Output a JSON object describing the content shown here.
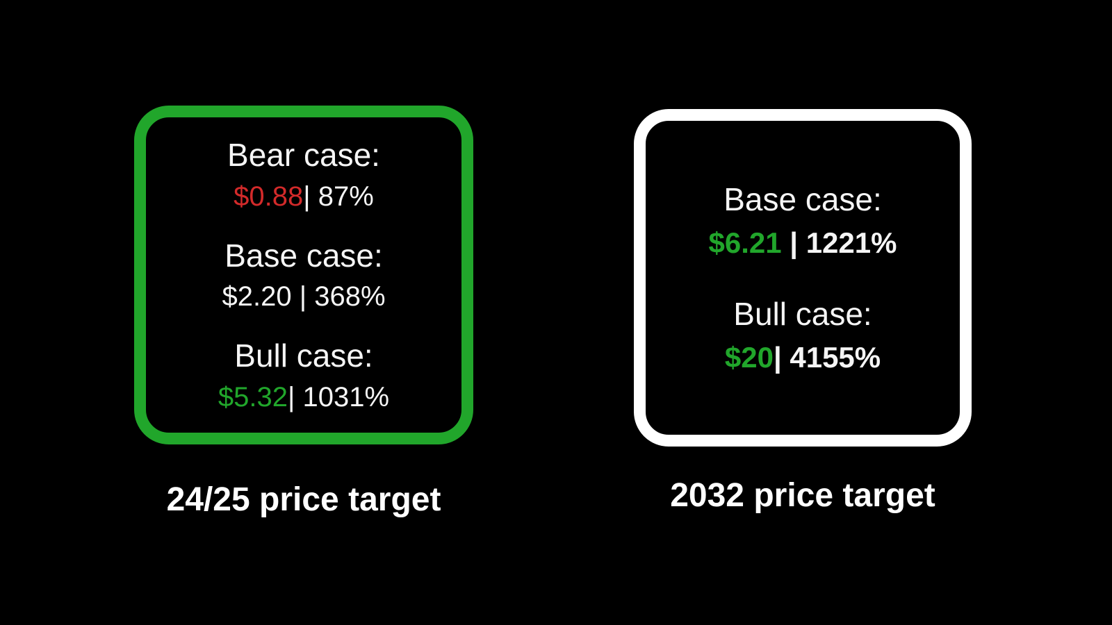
{
  "canvas": {
    "background": "#000000"
  },
  "colors": {
    "green": "#21a62b",
    "red": "#d32a2a",
    "white": "#f5f5f5"
  },
  "left_panel": {
    "caption": "24/25 price target",
    "border_color": "#21a62b",
    "cases": [
      {
        "label": "Bear case:",
        "price": "$0.88",
        "price_color": "#d32a2a",
        "percent": "| 87%"
      },
      {
        "label": "Base case:",
        "price": "$2.20",
        "price_color": "#f5f5f5",
        "percent": " | 368%"
      },
      {
        "label": "Bull case:",
        "price": "$5.32",
        "price_color": "#21a62b",
        "percent": "| 1031%"
      }
    ]
  },
  "right_panel": {
    "caption": "2032 price target",
    "border_color": "#ffffff",
    "cases": [
      {
        "label": "Base case:",
        "price": "$6.21",
        "price_color": "#21a62b",
        "percent": " | 1221%"
      },
      {
        "label": "Bull case:",
        "price": "$20",
        "price_color": "#21a62b",
        "percent": "| 4155%"
      }
    ]
  }
}
